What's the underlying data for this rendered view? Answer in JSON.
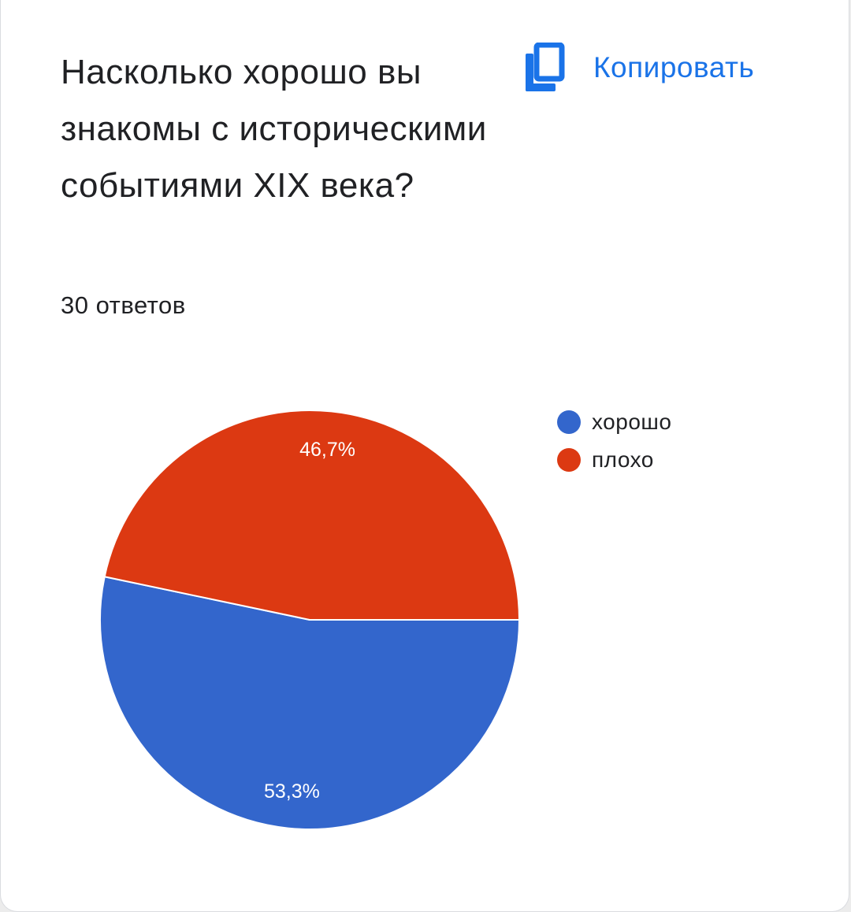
{
  "question": {
    "title": "Насколько хорошо вы знакомы с историческими событиями XIX века?",
    "responses": "30 ответов"
  },
  "toolbar": {
    "copy_label": "Копировать",
    "copy_icon": "copy-icon",
    "accent_color": "#1a73e8"
  },
  "chart_data": {
    "type": "pie",
    "series": [
      {
        "name": "хорошо",
        "value": 53.3,
        "label": "53,3%",
        "color": "#3366cc"
      },
      {
        "name": "плохо",
        "value": 46.7,
        "label": "46,7%",
        "color": "#dc3912"
      }
    ],
    "legend_position": "top-right"
  }
}
